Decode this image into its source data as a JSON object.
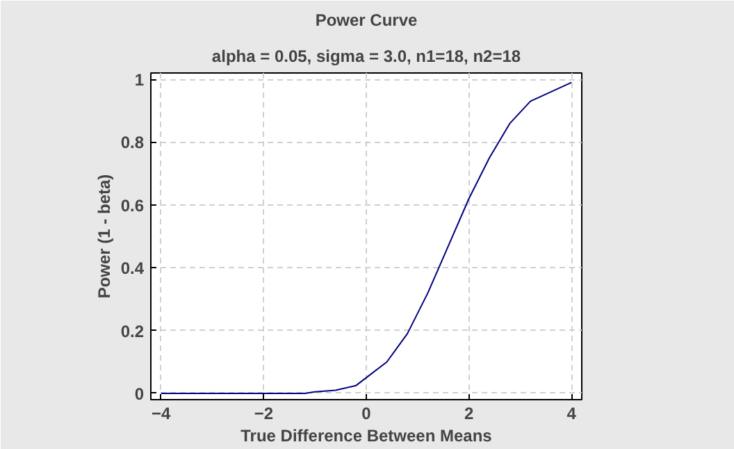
{
  "chart_data": {
    "type": "line",
    "title": "Power Curve",
    "subtitle": "alpha = 0.05, sigma = 3.0, n1=18, n2=18",
    "xlabel": "True Difference Between Means",
    "ylabel": "Power (1 - beta)",
    "x": [
      -4,
      -3,
      -2,
      -1.2,
      -1,
      -0.6,
      -0.2,
      0,
      0.4,
      0.8,
      1.2,
      1.6,
      2,
      2.4,
      2.8,
      3.2,
      3.6,
      4
    ],
    "series": [
      {
        "color": "#000080",
        "values": [
          0,
          0,
          0,
          0,
          0.005,
          0.01,
          0.025,
          0.05,
          0.1,
          0.19,
          0.32,
          0.47,
          0.62,
          0.75,
          0.86,
          0.93,
          0.96,
          0.99
        ]
      }
    ],
    "xlim": [
      -4.2,
      4.2
    ],
    "ylim": [
      -0.02,
      1.02
    ],
    "xticks": [
      -4,
      -2,
      0,
      2,
      4
    ],
    "yticks": [
      0,
      0.2,
      0.4,
      0.6,
      0.8,
      1
    ],
    "grid": true,
    "line_style": "solid"
  }
}
